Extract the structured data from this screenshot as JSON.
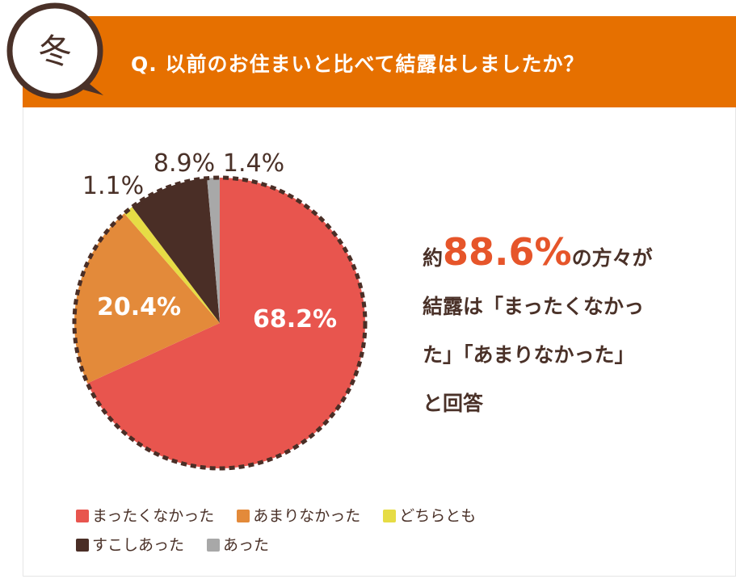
{
  "header": {
    "season_badge": "冬",
    "question": "Q. 以前のお住まいと比べて結露はしましたか？"
  },
  "summary": {
    "prefix": "約",
    "highlight": "88.6%",
    "line1_suffix": "の方々が",
    "line2": "結露は「まったくなかっ",
    "line3": "た」「あまりなかった」",
    "line4": "と回答"
  },
  "chart_data": {
    "type": "pie",
    "title": "Q. 以前のお住まいと比べて結露はしましたか？",
    "categories": [
      "まったくなかった",
      "あまりなかった",
      "どちらとも",
      "すこしあった",
      "あった"
    ],
    "values": [
      68.2,
      20.4,
      1.1,
      8.9,
      1.4
    ],
    "labels": [
      "68.2%",
      "20.4%",
      "1.1%",
      "8.9%",
      "1.4%"
    ],
    "colors": [
      "#e8554e",
      "#e38a3a",
      "#e6dc45",
      "#4a2e26",
      "#a8a8a8"
    ],
    "legend_position": "bottom"
  }
}
